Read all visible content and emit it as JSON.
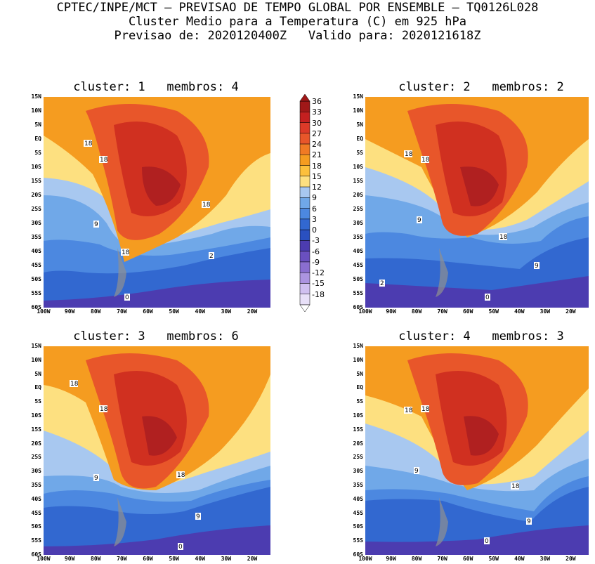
{
  "header": {
    "line1": "CPTEC/INPE/MCT – PREVISAO DE TEMPO GLOBAL POR ENSEMBLE – TQ0126L028",
    "line2": "Cluster Medio para a Temperatura (C) em 925 hPa",
    "line3": "Previsao de: 2020120400Z   Valido para: 2020121618Z"
  },
  "panels": [
    {
      "title": "cluster: 1   membros: 4",
      "contour_labels": [
        "18",
        "18",
        "18",
        "9",
        "18",
        "2",
        "0"
      ]
    },
    {
      "title": "cluster: 2   membros: 2",
      "contour_labels": [
        "18",
        "18",
        "9",
        "18",
        "9",
        "2",
        "0"
      ]
    },
    {
      "title": "cluster: 3   membros: 6",
      "contour_labels": [
        "18",
        "18",
        "9",
        "18",
        "9",
        "0"
      ]
    },
    {
      "title": "cluster: 4   membros: 3",
      "contour_labels": [
        "18",
        "18",
        "9",
        "18",
        "9",
        "0"
      ]
    }
  ],
  "lat_labels": [
    "15N",
    "10N",
    "5N",
    "EQ",
    "5S",
    "10S",
    "15S",
    "20S",
    "25S",
    "30S",
    "35S",
    "40S",
    "45S",
    "50S",
    "55S",
    "60S"
  ],
  "lon_labels": [
    "100W",
    "90W",
    "80W",
    "70W",
    "60W",
    "50W",
    "40W",
    "30W",
    "20W"
  ],
  "colorbar": {
    "labels": [
      "36",
      "33",
      "30",
      "27",
      "24",
      "21",
      "18",
      "15",
      "12",
      "9",
      "6",
      "3",
      "0",
      "-3",
      "-6",
      "-9",
      "-12",
      "-15",
      "-18"
    ],
    "colors": [
      "#a01818",
      "#c42020",
      "#dc3a28",
      "#e8562a",
      "#f07a24",
      "#f59c20",
      "#fcc03c",
      "#fde080",
      "#a8c8f0",
      "#70a8e8",
      "#4c88e0",
      "#3268d0",
      "#2a50c0",
      "#4c3cb0",
      "#6a50c0",
      "#8a6ed0",
      "#ac94e0",
      "#d0c0f0",
      "#e8e0f8"
    ]
  },
  "colors": {
    "land_hot": "#d03020",
    "land_warm": "#e8562a",
    "ocean_warm": "#f59c20",
    "yellow": "#fde080",
    "light_blue": "#a8c8f0",
    "mid_blue": "#70a8e8",
    "blue": "#4c88e0",
    "deep_blue": "#3268d0",
    "purple": "#4c3cb0"
  }
}
